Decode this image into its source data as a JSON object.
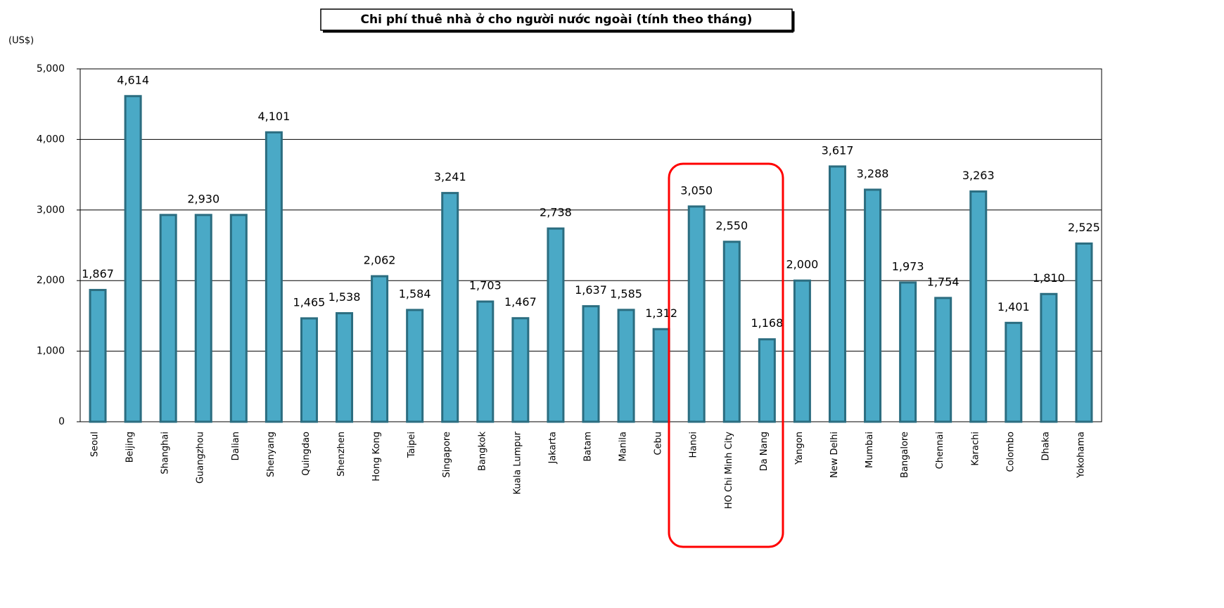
{
  "chart_data": {
    "type": "bar",
    "title": "Chi phí thuê nhà ở cho người  nước ngoài (tính theo tháng)",
    "y_label": "(US$)",
    "categories": [
      "Seoul",
      "Beijing",
      "Shanghai",
      "Guangzhou",
      "Dalian",
      "Shenyang",
      "Quingdao",
      "Shenzhen",
      "Hong Kong",
      "Taipei",
      "Singapore",
      "Bangkok",
      "Kuala Lumpur",
      "Jakarta",
      "Batam",
      "Manila",
      "Cebu",
      "Hanoi",
      "HO Chi Minh City",
      "Da Nang",
      "Yangon",
      "New Delhi",
      "Mumbai",
      "Bangalore",
      "Chennai",
      "Karachi",
      "Colombo",
      "Dhaka",
      "Yokohama"
    ],
    "values": [
      1867,
      4614,
      2930,
      2930,
      2930,
      4101,
      1465,
      1538,
      2062,
      1584,
      3241,
      1703,
      1467,
      2738,
      1637,
      1585,
      1312,
      3050,
      2550,
      1168,
      2000,
      3617,
      3288,
      1973,
      1754,
      3263,
      1401,
      1810,
      2525
    ],
    "value_labels": [
      "1,867",
      "4,614",
      null,
      "2,930",
      null,
      "4,101",
      "1,465",
      "1,538",
      "2,062",
      "1,584",
      "3,241",
      "1,703",
      "1,467",
      "2,738",
      "1,637",
      "1,585",
      "1,312",
      "3,050",
      "2,550",
      "1,168",
      "2,000",
      "3,617",
      "3,288",
      "1,973",
      "1,754",
      "3,263",
      "1,401",
      "1,810",
      "2,525"
    ],
    "color": "#4aa9c6",
    "edge_color": "#2b6d80",
    "ylim": [
      0,
      5000
    ],
    "yticks": [
      0,
      {
        "value": 1000,
        "label": "1,000"
      },
      {
        "value": 2000,
        "label": "2,000"
      },
      {
        "value": 3000,
        "label": "3,000"
      },
      {
        "value": 4000,
        "label": "4,000"
      },
      {
        "value": 5000,
        "label": "5,000"
      }
    ],
    "grid": true
  }
}
